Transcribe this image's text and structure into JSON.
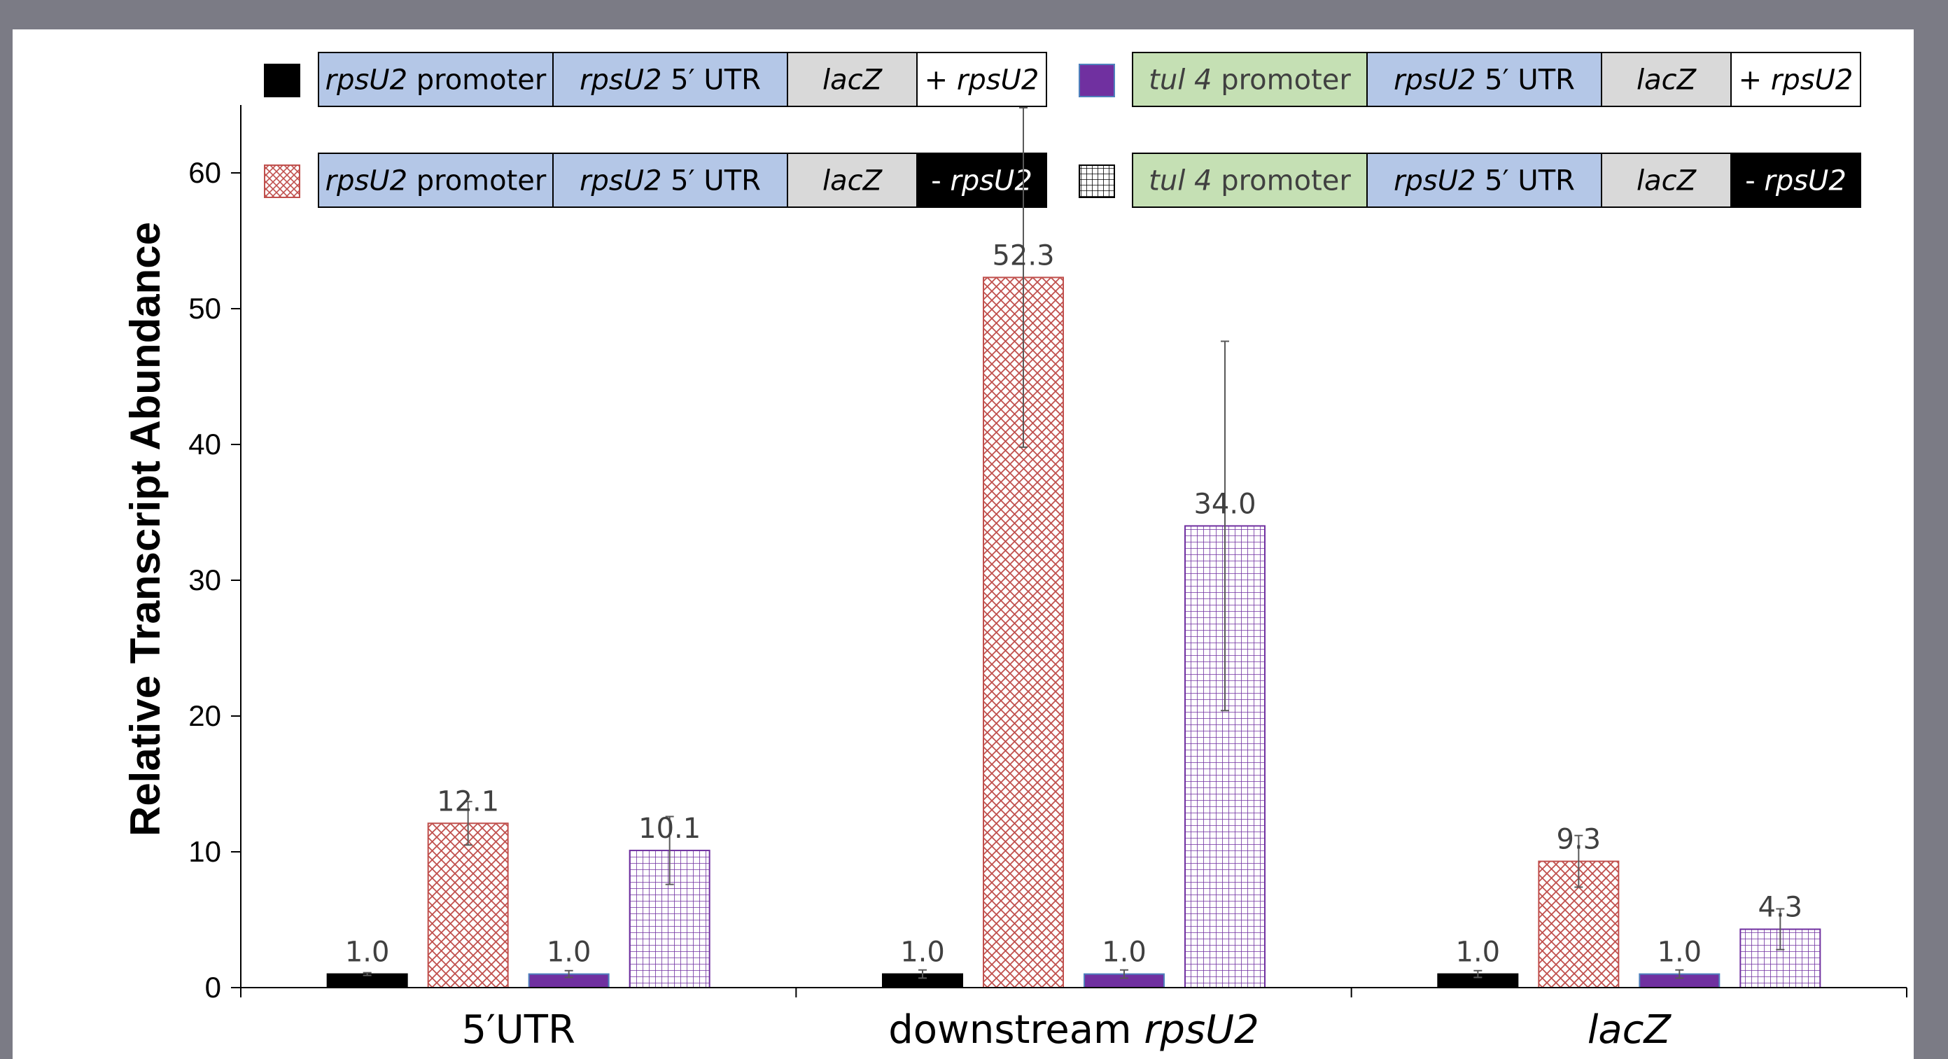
{
  "chart_data": {
    "type": "bar",
    "ylabel": "Relative Transcript Abundance",
    "ylim": [
      0,
      65
    ],
    "yticks": [
      0,
      10,
      20,
      30,
      40,
      50,
      60
    ],
    "grid": false,
    "legend_position": "top",
    "categories": [
      {
        "parts": [
          {
            "text": "5′UTR",
            "italic": false
          }
        ]
      },
      {
        "parts": [
          {
            "text": "downstream ",
            "italic": false
          },
          {
            "text": "rpsU2",
            "italic": true
          }
        ]
      },
      {
        "parts": [
          {
            "text": "lacZ",
            "italic": true
          }
        ]
      }
    ],
    "series": [
      {
        "values": [
          1.0,
          1.0,
          1.0
        ],
        "labels": [
          "1.0",
          "1.0",
          "1.0"
        ],
        "errors": [
          0.1,
          0.3,
          0.25
        ],
        "style": "solid-black",
        "fill": "#000000",
        "legend": [
          {
            "parts": [
              {
                "text": "rpsU2",
                "italic": true
              },
              {
                "text": " promoter",
                "italic": false
              }
            ],
            "bg": "#b4c7e7",
            "fg": "#000000"
          },
          {
            "parts": [
              {
                "text": "rpsU2",
                "italic": true
              },
              {
                "text": "  5′ UTR",
                "italic": false
              }
            ],
            "bg": "#b4c7e7",
            "fg": "#000000"
          },
          {
            "parts": [
              {
                "text": "lacZ",
                "italic": true
              }
            ],
            "bg": "#d9d9d9",
            "fg": "#000000"
          },
          {
            "parts": [
              {
                "text": "+ ",
                "italic": false
              },
              {
                "text": "rpsU2",
                "italic": true
              }
            ],
            "bg": "#ffffff",
            "fg": "#000000"
          }
        ]
      },
      {
        "values": [
          12.1,
          52.3,
          9.3
        ],
        "labels": [
          "12.1",
          "52.3",
          "9.3"
        ],
        "errors": [
          1.6,
          12.5,
          1.9
        ],
        "style": "red-crosshatch",
        "fill": "#c0504d",
        "legend": [
          {
            "parts": [
              {
                "text": "rpsU2",
                "italic": true
              },
              {
                "text": " promoter",
                "italic": false
              }
            ],
            "bg": "#b4c7e7",
            "fg": "#000000"
          },
          {
            "parts": [
              {
                "text": "rpsU2",
                "italic": true
              },
              {
                "text": "  5′ UTR",
                "italic": false
              }
            ],
            "bg": "#b4c7e7",
            "fg": "#000000"
          },
          {
            "parts": [
              {
                "text": "lacZ",
                "italic": true
              }
            ],
            "bg": "#d9d9d9",
            "fg": "#000000"
          },
          {
            "parts": [
              {
                "text": "- ",
                "italic": false
              },
              {
                "text": "rpsU2",
                "italic": true
              }
            ],
            "bg": "#000000",
            "fg": "#ffffff"
          }
        ]
      },
      {
        "values": [
          1.0,
          1.0,
          1.0
        ],
        "labels": [
          "1.0",
          "1.0",
          "1.0"
        ],
        "errors": [
          0.25,
          0.3,
          0.3
        ],
        "style": "solid-purple",
        "fill": "#7030a0",
        "legend": [
          {
            "parts": [
              {
                "text": "tul 4",
                "italic": true
              },
              {
                "text": "  promoter",
                "italic": false
              }
            ],
            "bg": "#c5e0b4",
            "fg": "#404040"
          },
          {
            "parts": [
              {
                "text": "rpsU2",
                "italic": true
              },
              {
                "text": "  5′ UTR",
                "italic": false
              }
            ],
            "bg": "#b4c7e7",
            "fg": "#000000"
          },
          {
            "parts": [
              {
                "text": "lacZ",
                "italic": true
              }
            ],
            "bg": "#d9d9d9",
            "fg": "#000000"
          },
          {
            "parts": [
              {
                "text": "+ ",
                "italic": false
              },
              {
                "text": "rpsU2",
                "italic": true
              }
            ],
            "bg": "#ffffff",
            "fg": "#000000"
          }
        ]
      },
      {
        "values": [
          10.1,
          34.0,
          4.3
        ],
        "labels": [
          "10.1",
          "34.0",
          "4.3"
        ],
        "errors": [
          2.5,
          13.6,
          1.5
        ],
        "style": "purple-grid",
        "fill": "#7030a0",
        "legend": [
          {
            "parts": [
              {
                "text": "tul 4",
                "italic": true
              },
              {
                "text": "  promoter",
                "italic": false
              }
            ],
            "bg": "#c5e0b4",
            "fg": "#404040"
          },
          {
            "parts": [
              {
                "text": "rpsU2",
                "italic": true
              },
              {
                "text": "  5′ UTR",
                "italic": false
              }
            ],
            "bg": "#b4c7e7",
            "fg": "#000000"
          },
          {
            "parts": [
              {
                "text": "lacZ",
                "italic": true
              }
            ],
            "bg": "#d9d9d9",
            "fg": "#000000"
          },
          {
            "parts": [
              {
                "text": "- ",
                "italic": false
              },
              {
                "text": "rpsU2",
                "italic": true
              }
            ],
            "bg": "#000000",
            "fg": "#ffffff"
          }
        ]
      }
    ]
  }
}
